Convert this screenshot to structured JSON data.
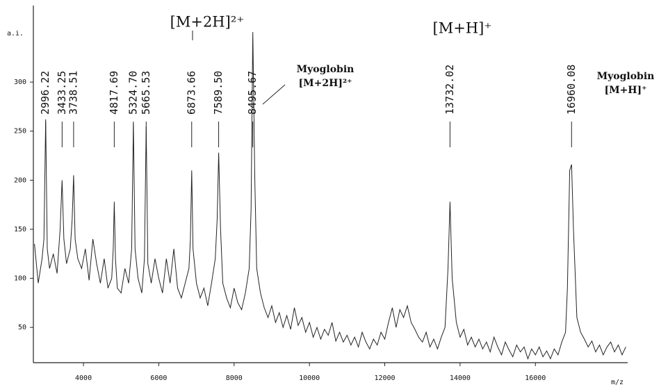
{
  "chart_data": {
    "type": "line",
    "ylabel": "a.i.",
    "xlabel": "m/z",
    "xlim": [
      2670,
      18450
    ],
    "ylim": [
      14,
      378
    ],
    "xticks": [
      4000,
      6000,
      8000,
      10000,
      12000,
      14000,
      16000
    ],
    "yticks": [
      50,
      100,
      150,
      200,
      250,
      300
    ],
    "color": "#222222",
    "x": [
      2700,
      2800,
      2900,
      2950,
      2996,
      3040,
      3100,
      3200,
      3300,
      3380,
      3433,
      3480,
      3550,
      3650,
      3700,
      3738,
      3780,
      3850,
      3950,
      4050,
      4150,
      4250,
      4350,
      4450,
      4550,
      4650,
      4750,
      4790,
      4818,
      4850,
      4900,
      5000,
      5100,
      5200,
      5280,
      5325,
      5370,
      5450,
      5550,
      5620,
      5666,
      5710,
      5800,
      5900,
      6000,
      6100,
      6200,
      6300,
      6400,
      6500,
      6600,
      6700,
      6800,
      6840,
      6874,
      6910,
      7000,
      7100,
      7200,
      7300,
      7400,
      7500,
      7550,
      7590,
      7640,
      7700,
      7800,
      7900,
      8000,
      8100,
      8200,
      8300,
      8400,
      8450,
      8496,
      8550,
      8600,
      8700,
      8800,
      8900,
      9000,
      9100,
      9200,
      9300,
      9400,
      9500,
      9600,
      9700,
      9800,
      9900,
      10000,
      10100,
      10200,
      10300,
      10400,
      10500,
      10600,
      10700,
      10800,
      10900,
      11000,
      11100,
      11200,
      11300,
      11400,
      11500,
      11600,
      11700,
      11800,
      11900,
      12000,
      12100,
      12200,
      12300,
      12400,
      12500,
      12600,
      12700,
      12800,
      12900,
      13000,
      13100,
      13200,
      13300,
      13400,
      13500,
      13600,
      13680,
      13732,
      13790,
      13900,
      14000,
      14100,
      14200,
      14300,
      14400,
      14500,
      14600,
      14700,
      14800,
      14900,
      15000,
      15100,
      15200,
      15300,
      15400,
      15500,
      15600,
      15700,
      15800,
      15900,
      16000,
      16100,
      16200,
      16300,
      16400,
      16500,
      16600,
      16700,
      16800,
      16850,
      16910,
      16960,
      17010,
      17100,
      17200,
      17300,
      17400,
      17500,
      17600,
      17700,
      17800,
      17900,
      18000,
      18100,
      18200,
      18300,
      18400
    ],
    "values": [
      135,
      95,
      120,
      140,
      262,
      130,
      110,
      125,
      105,
      150,
      200,
      140,
      115,
      130,
      160,
      205,
      140,
      120,
      110,
      130,
      98,
      140,
      115,
      95,
      120,
      90,
      100,
      130,
      178,
      120,
      90,
      85,
      110,
      95,
      130,
      258,
      130,
      100,
      85,
      120,
      255,
      115,
      95,
      120,
      100,
      85,
      120,
      95,
      130,
      90,
      80,
      95,
      110,
      140,
      210,
      130,
      95,
      80,
      90,
      72,
      95,
      120,
      160,
      228,
      150,
      95,
      80,
      70,
      90,
      75,
      68,
      85,
      110,
      170,
      351,
      200,
      110,
      85,
      70,
      60,
      72,
      55,
      65,
      50,
      62,
      48,
      70,
      52,
      60,
      45,
      55,
      40,
      50,
      38,
      48,
      42,
      55,
      36,
      45,
      35,
      42,
      32,
      40,
      30,
      45,
      35,
      28,
      38,
      32,
      45,
      38,
      55,
      70,
      50,
      68,
      60,
      72,
      55,
      48,
      40,
      35,
      45,
      30,
      38,
      28,
      40,
      50,
      110,
      178,
      100,
      55,
      40,
      48,
      32,
      40,
      30,
      38,
      28,
      35,
      25,
      40,
      30,
      22,
      35,
      27,
      20,
      32,
      25,
      30,
      18,
      28,
      22,
      30,
      20,
      26,
      18,
      28,
      22,
      35,
      45,
      90,
      210,
      216,
      150,
      60,
      45,
      38,
      30,
      36,
      25,
      32,
      22,
      30,
      35,
      25,
      32,
      22,
      30
    ],
    "peak_labels": [
      2996.22,
      3433.25,
      3738.51,
      4817.69,
      {
        "value": 5324.7,
        "label": "5324.70"
      },
      5665.53,
      6873.66,
      {
        "value": 7589.5,
        "label": "7589.50"
      },
      8495.67,
      {
        "value": 13732.02,
        "label": "13732.02"
      },
      16960.08
    ],
    "annotations": [
      "[M+2H]²⁺",
      "[M+H]⁺",
      "Myoglobin",
      "[M+2H]²⁺",
      "Myoglobin",
      "[M+H]⁺"
    ]
  }
}
